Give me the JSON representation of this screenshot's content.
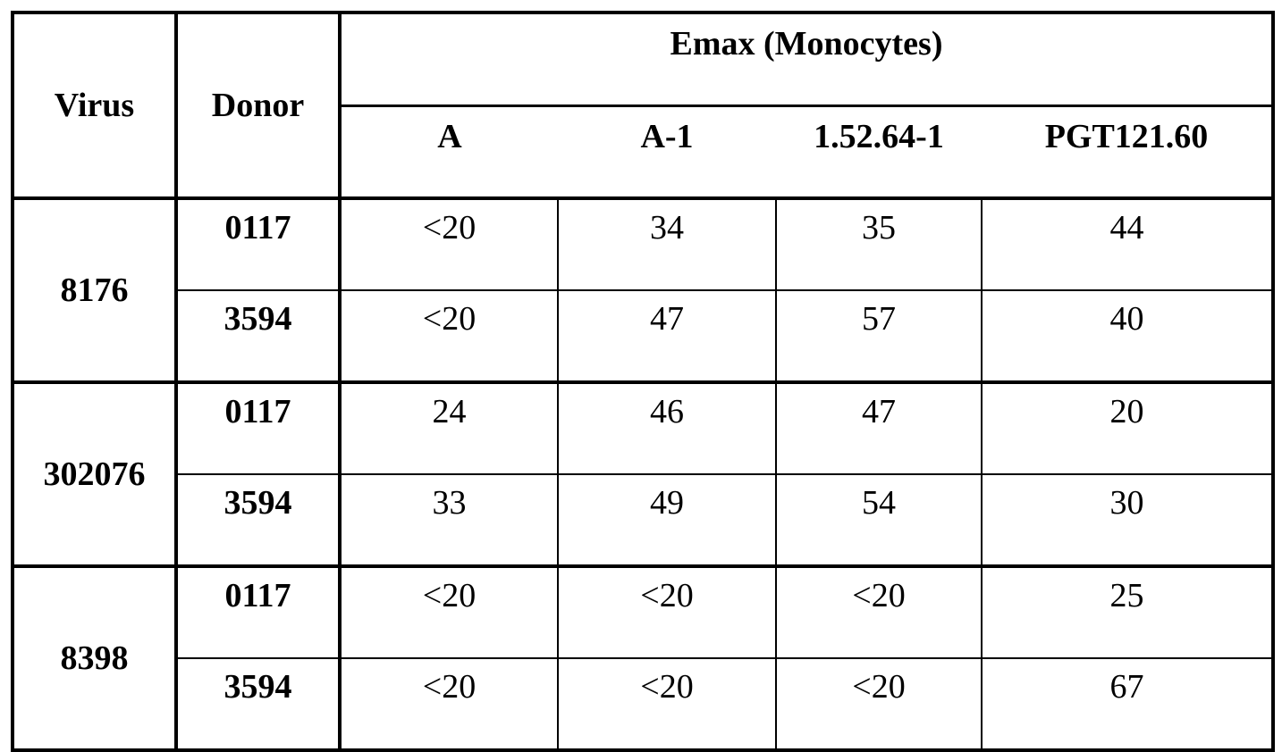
{
  "table": {
    "header": {
      "virus": "Virus",
      "donor": "Donor",
      "group": "Emax (Monocytes)",
      "columns": [
        "A",
        "A-1",
        "1.52.64-1",
        "PGT121.60"
      ]
    },
    "groups": [
      {
        "virus": "8176",
        "rows": [
          {
            "donor": "0117",
            "values": [
              "<20",
              "34",
              "35",
              "44"
            ]
          },
          {
            "donor": "3594",
            "values": [
              "<20",
              "47",
              "57",
              "40"
            ]
          }
        ]
      },
      {
        "virus": "302076",
        "rows": [
          {
            "donor": "0117",
            "values": [
              "24",
              "46",
              "47",
              "20"
            ]
          },
          {
            "donor": "3594",
            "values": [
              "33",
              "49",
              "54",
              "30"
            ]
          }
        ]
      },
      {
        "virus": "8398",
        "rows": [
          {
            "donor": "0117",
            "values": [
              "<20",
              "<20",
              "<20",
              "25"
            ]
          },
          {
            "donor": "3594",
            "values": [
              "<20",
              "<20",
              "<20",
              "67"
            ]
          }
        ]
      }
    ]
  }
}
